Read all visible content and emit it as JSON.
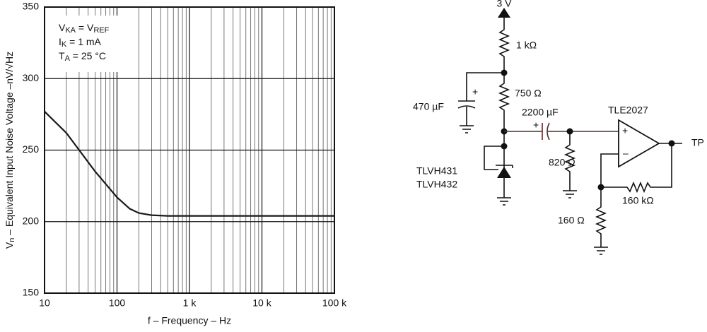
{
  "chart_data": {
    "type": "line",
    "x": [
      10,
      20,
      50,
      100,
      150,
      200,
      300,
      500,
      1000,
      10000,
      100000
    ],
    "series": [
      {
        "color": "#1a1a1a",
        "values": [
          277,
          262,
          235,
          217,
          209,
          206,
          204.5,
          204,
          204,
          204,
          204
        ]
      }
    ],
    "xlim": [
      10,
      100000
    ],
    "ylim": [
      150,
      350
    ],
    "xscale": "log",
    "xticks": [
      10,
      100,
      {
        "value": 1000,
        "label": "1 k"
      },
      {
        "value": 10000,
        "label": "10 k"
      },
      {
        "value": 100000,
        "label": "100 k"
      }
    ],
    "yticks": [
      150,
      200,
      250,
      300,
      350
    ],
    "grid": true,
    "minor_grid": true,
    "xlabel": "f – Frequency – Hz",
    "ylabel": [
      "V",
      "n",
      " – Equivalent Input Noise Voltage –nV/√Hz"
    ],
    "annotation": [
      [
        "V",
        "KA",
        " = V",
        "REF"
      ],
      [
        "I",
        "K",
        " = 1 mA"
      ],
      [
        "T",
        "A",
        " = 25 °C"
      ]
    ]
  },
  "diagram": {
    "supply": "3 V",
    "r1": "1 kΩ",
    "r2": "750 Ω",
    "c1": "470 µF",
    "c2": "2200 µF",
    "opamp": "TLE2027",
    "regulator": [
      "TLVH431",
      "TLVH432"
    ],
    "r3": "820 Ω",
    "output": "TP",
    "r4": "160 kΩ",
    "r5": "160 Ω",
    "plus": "+",
    "minus": "–"
  }
}
